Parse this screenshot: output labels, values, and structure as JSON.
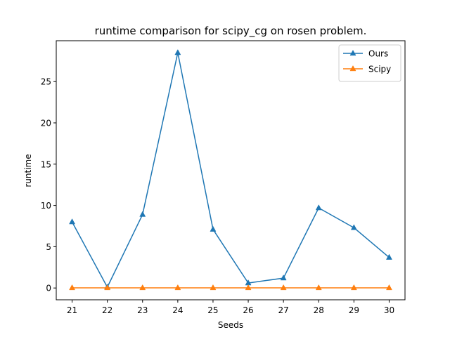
{
  "chart_data": {
    "type": "line",
    "title": "runtime comparison for scipy_cg on rosen problem.",
    "xlabel": "Seeds",
    "ylabel": "runtime",
    "x": [
      21,
      22,
      23,
      24,
      25,
      26,
      27,
      28,
      29,
      30
    ],
    "xlim": [
      20.55,
      30.45
    ],
    "ylim": [
      -1.43,
      29.95
    ],
    "xticks": [
      "21",
      "22",
      "23",
      "24",
      "25",
      "26",
      "27",
      "28",
      "29",
      "30"
    ],
    "yticks": [
      0,
      5,
      10,
      15,
      20,
      25
    ],
    "grid": false,
    "legend_position": "top-right",
    "marker": "triangle-up",
    "series": [
      {
        "name": "Ours",
        "color": "#1f77b4",
        "values": [
          8.0,
          0.1,
          8.9,
          28.5,
          7.1,
          0.6,
          1.2,
          9.7,
          7.3,
          3.7
        ]
      },
      {
        "name": "Scipy",
        "color": "#ff7f0e",
        "values": [
          0.02,
          0.02,
          0.02,
          0.02,
          0.02,
          0.02,
          0.02,
          0.02,
          0.02,
          0.02
        ]
      }
    ]
  }
}
